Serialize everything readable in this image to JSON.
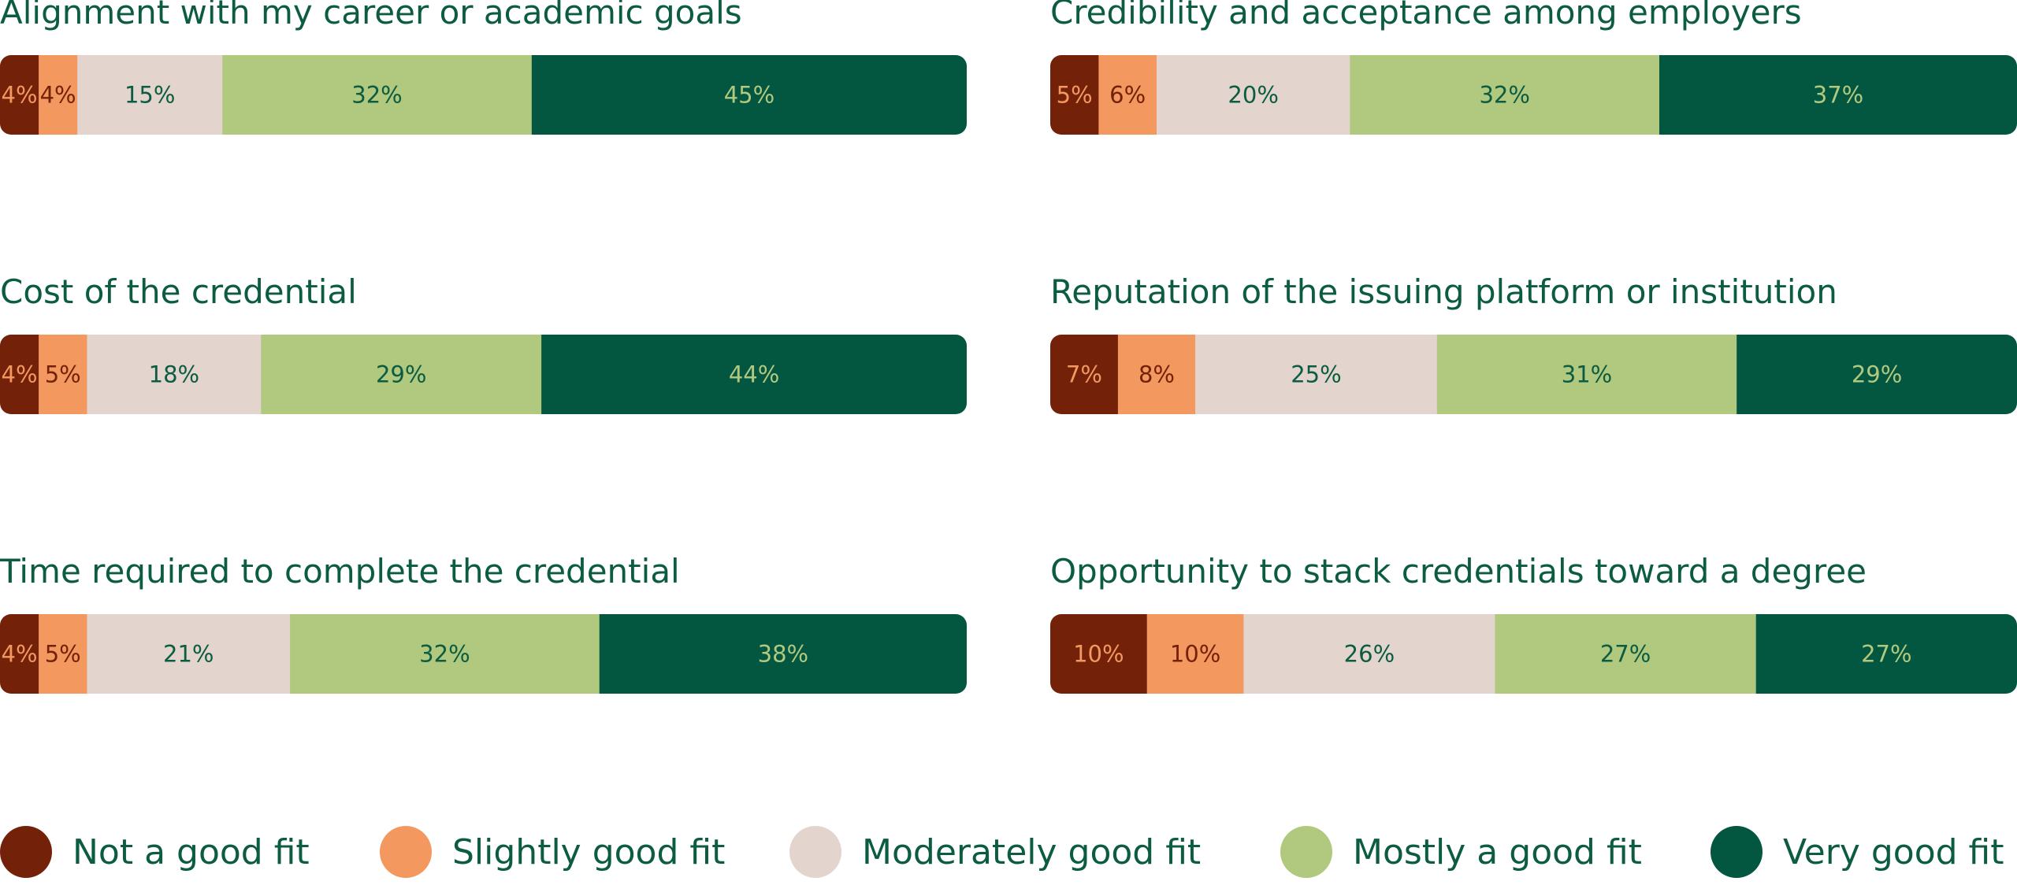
{
  "legend": {
    "items": [
      {
        "label": "Not a good fit",
        "color": "#742109"
      },
      {
        "label": "Slightly good fit",
        "color": "#f3985f"
      },
      {
        "label": "Moderately good fit",
        "color": "#e3d5cd"
      },
      {
        "label": "Mostly a good fit",
        "color": "#b1c87f"
      },
      {
        "label": "Very good fit",
        "color": "#035640"
      }
    ]
  },
  "chart_data": [
    {
      "type": "bar",
      "orientation": "horizontal-stacked",
      "title": "Alignment with my career or academic goals",
      "categories": [
        "Not a good fit",
        "Slightly good fit",
        "Moderately good fit",
        "Mostly a good fit",
        "Very good fit"
      ],
      "values": [
        4,
        4,
        15,
        32,
        45
      ],
      "labels": [
        "4%",
        "4%",
        "15%",
        "32%",
        "45%"
      ]
    },
    {
      "type": "bar",
      "orientation": "horizontal-stacked",
      "title": "Credibility and acceptance among employers",
      "categories": [
        "Not a good fit",
        "Slightly good fit",
        "Moderately good fit",
        "Mostly a good fit",
        "Very good fit"
      ],
      "values": [
        5,
        6,
        20,
        32,
        37
      ],
      "labels": [
        "5%",
        "6%",
        "20%",
        "32%",
        "37%"
      ]
    },
    {
      "type": "bar",
      "orientation": "horizontal-stacked",
      "title": "Cost of the credential",
      "categories": [
        "Not a good fit",
        "Slightly good fit",
        "Moderately good fit",
        "Mostly a good fit",
        "Very good fit"
      ],
      "values": [
        4,
        5,
        18,
        29,
        44
      ],
      "labels": [
        "4%",
        "5%",
        "18%",
        "29%",
        "44%"
      ]
    },
    {
      "type": "bar",
      "orientation": "horizontal-stacked",
      "title": "Reputation of the issuing platform or institution",
      "categories": [
        "Not a good fit",
        "Slightly good fit",
        "Moderately good fit",
        "Mostly a good fit",
        "Very good fit"
      ],
      "values": [
        7,
        8,
        25,
        31,
        29
      ],
      "labels": [
        "7%",
        "8%",
        "25%",
        "31%",
        "29%"
      ]
    },
    {
      "type": "bar",
      "orientation": "horizontal-stacked",
      "title": "Time required to complete the credential",
      "categories": [
        "Not a good fit",
        "Slightly good fit",
        "Moderately good fit",
        "Mostly a good fit",
        "Very good fit"
      ],
      "values": [
        4,
        5,
        21,
        32,
        38
      ],
      "labels": [
        "4%",
        "5%",
        "21%",
        "32%",
        "38%"
      ]
    },
    {
      "type": "bar",
      "orientation": "horizontal-stacked",
      "title": "Opportunity to stack credentials toward a degree",
      "categories": [
        "Not a good fit",
        "Slightly good fit",
        "Moderately good fit",
        "Mostly a good fit",
        "Very good fit"
      ],
      "values": [
        10,
        10,
        26,
        27,
        27
      ],
      "labels": [
        "10%",
        "10%",
        "26%",
        "27%",
        "27%"
      ]
    }
  ]
}
